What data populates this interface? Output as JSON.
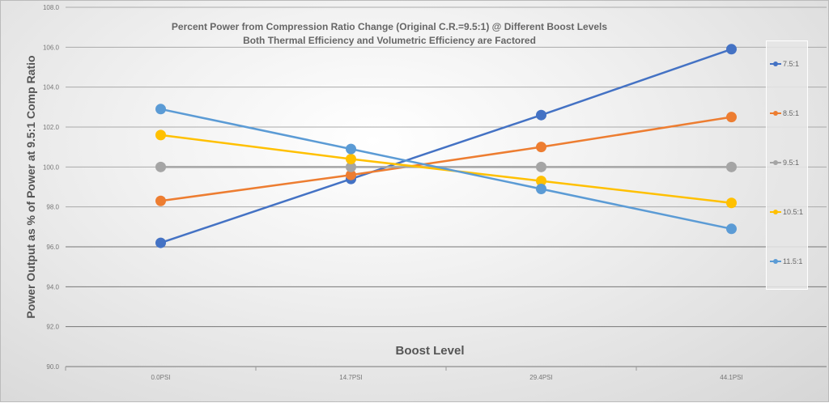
{
  "chart_data": {
    "type": "line",
    "title": "Percent Power from Compression Ratio Change (Original C.R.=9.5:1) @ Different Boost Levels",
    "subtitle": "Both Thermal Efficiency and Volumetric Efficiency are Factored",
    "xlabel": "Boost Level",
    "ylabel": "Power Output as % of Power at 9.5:1 Comp Ratio",
    "ylim": [
      90,
      108
    ],
    "yticks": [
      "90.0",
      "92.0",
      "94.0",
      "96.0",
      "98.0",
      "100.0",
      "102.0",
      "104.0",
      "106.0",
      "108.0"
    ],
    "categories": [
      "0.0PSI",
      "14.7PSI",
      "29.4PSI",
      "44.1PSI"
    ],
    "grid": true,
    "legend_position": "right",
    "series": [
      {
        "name": "7.5:1",
        "color": "#4472C4",
        "values": [
          96.2,
          99.4,
          102.6,
          105.9
        ]
      },
      {
        "name": "8.5:1",
        "color": "#ED7D31",
        "values": [
          98.3,
          99.6,
          101.0,
          102.5
        ]
      },
      {
        "name": "9.5:1",
        "color": "#A5A5A5",
        "values": [
          100.0,
          100.0,
          100.0,
          100.0
        ]
      },
      {
        "name": "10.5:1",
        "color": "#FFC000",
        "values": [
          101.6,
          100.4,
          99.3,
          98.2
        ]
      },
      {
        "name": "11.5:1",
        "color": "#5B9BD5",
        "values": [
          102.9,
          100.9,
          98.9,
          96.9
        ]
      }
    ]
  }
}
